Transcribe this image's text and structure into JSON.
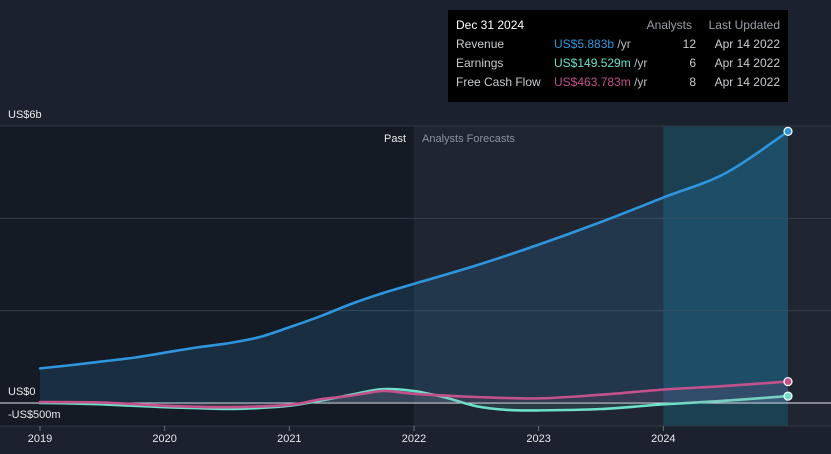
{
  "colors": {
    "background": "#1b222d",
    "revenue": "#2f95dc",
    "earnings": "#6ee0c8",
    "free_cash_flow": "#c2528c",
    "forecast_bg": "#1f2631",
    "past_bg": "#151b24",
    "highlight_band": "#1a4a5e"
  },
  "tooltip": {
    "title": "Dec 31 2024",
    "col_analysts": "Analysts",
    "col_updated": "Last Updated",
    "rows": [
      {
        "label": "Revenue",
        "value": "US$5.883b",
        "unit": "/yr",
        "analysts": "12",
        "updated": "Apr 14 2022"
      },
      {
        "label": "Earnings",
        "value": "US$149.529m",
        "unit": "/yr",
        "analysts": "6",
        "updated": "Apr 14 2022"
      },
      {
        "label": "Free Cash Flow",
        "value": "US$463.783m",
        "unit": "/yr",
        "analysts": "8",
        "updated": "Apr 14 2022"
      }
    ]
  },
  "chart_data": {
    "type": "line",
    "x_unit": "year",
    "xlim": [
      2019,
      2025.0
    ],
    "ylim": [
      -500,
      6000
    ],
    "y_unit": "US$m",
    "y_tick_labels": [
      {
        "value": 6000,
        "label": "US$6b"
      },
      {
        "value": 0,
        "label": "US$0"
      },
      {
        "value": -500,
        "label": "-US$500m"
      }
    ],
    "x_ticks": [
      2019,
      2020,
      2021,
      2022,
      2023,
      2024
    ],
    "past_label": "Past",
    "forecast_label": "Analysts Forecasts",
    "forecast_start": 2022,
    "highlight_start": 2024,
    "grid": true,
    "series": [
      {
        "name": "Revenue",
        "key": "revenue",
        "area": true,
        "x": [
          2019,
          2019.25,
          2019.5,
          2019.75,
          2020,
          2020.25,
          2020.5,
          2020.75,
          2021,
          2021.25,
          2021.5,
          2021.75,
          2022,
          2022.5,
          2023,
          2023.5,
          2024,
          2024.5,
          2025.0
        ],
        "y": [
          750,
          820,
          900,
          980,
          1090,
          1200,
          1290,
          1420,
          1640,
          1880,
          2150,
          2380,
          2580,
          2980,
          3430,
          3920,
          4450,
          4980,
          5883
        ]
      },
      {
        "name": "Earnings",
        "key": "earnings",
        "area": false,
        "x": [
          2019,
          2019.25,
          2019.5,
          2019.75,
          2020,
          2020.25,
          2020.5,
          2020.75,
          2021,
          2021.25,
          2021.5,
          2021.75,
          2022,
          2022.25,
          2022.5,
          2022.75,
          2023,
          2023.5,
          2024,
          2024.5,
          2025.0
        ],
        "y": [
          0,
          -10,
          -30,
          -60,
          -90,
          -110,
          -130,
          -110,
          -60,
          50,
          180,
          300,
          260,
          120,
          -70,
          -150,
          -160,
          -130,
          -30,
          50,
          150
        ]
      },
      {
        "name": "Free Cash Flow",
        "key": "free_cash_flow",
        "area": false,
        "x": [
          2019,
          2019.5,
          2020,
          2020.5,
          2021,
          2021.25,
          2021.5,
          2021.75,
          2022,
          2022.5,
          2023,
          2023.5,
          2024,
          2024.5,
          2025.0
        ],
        "y": [
          20,
          10,
          -60,
          -90,
          -40,
          80,
          160,
          260,
          200,
          130,
          100,
          180,
          290,
          370,
          464
        ]
      }
    ],
    "end_points": [
      {
        "series": "revenue",
        "x": 2025.0,
        "y": 5883
      },
      {
        "series": "earnings",
        "x": 2025.0,
        "y": 150
      },
      {
        "series": "free_cash_flow",
        "x": 2025.0,
        "y": 464
      }
    ]
  }
}
